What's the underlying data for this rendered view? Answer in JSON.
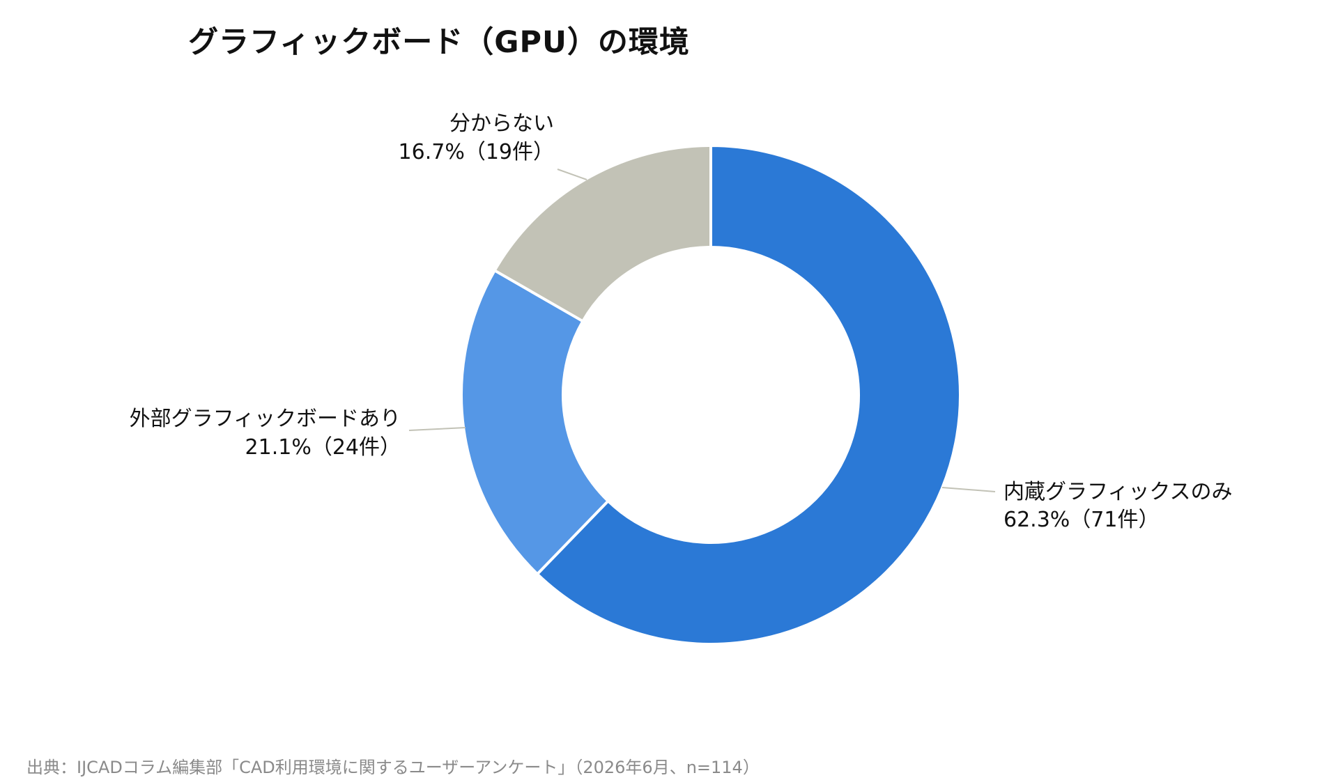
{
  "chart_data": {
    "type": "pie",
    "variant": "donut",
    "title": "グラフィックボード（GPU）の環境",
    "categories": [
      "内蔵グラフィックスのみ",
      "外部グラフィックボードあり",
      "分からない"
    ],
    "values": [
      62.3,
      21.1,
      16.7
    ],
    "counts": [
      71,
      24,
      19
    ],
    "colors": [
      "#2b79d6",
      "#5597e6",
      "#c2c2b6"
    ],
    "label_lines": [
      {
        "name": "内蔵グラフィックスのみ",
        "detail": "62.3%（71件）"
      },
      {
        "name": "外部グラフィックボードあり",
        "detail": "21.1%（24件）"
      },
      {
        "name": "分からない",
        "detail": "16.7%（19件）"
      }
    ],
    "start": "12 o'clock, clockwise",
    "legend": "none"
  },
  "source": "出典：IJCADコラム編集部「CAD利用環境に関するユーザーアンケート」（2026年6月、n=114）"
}
